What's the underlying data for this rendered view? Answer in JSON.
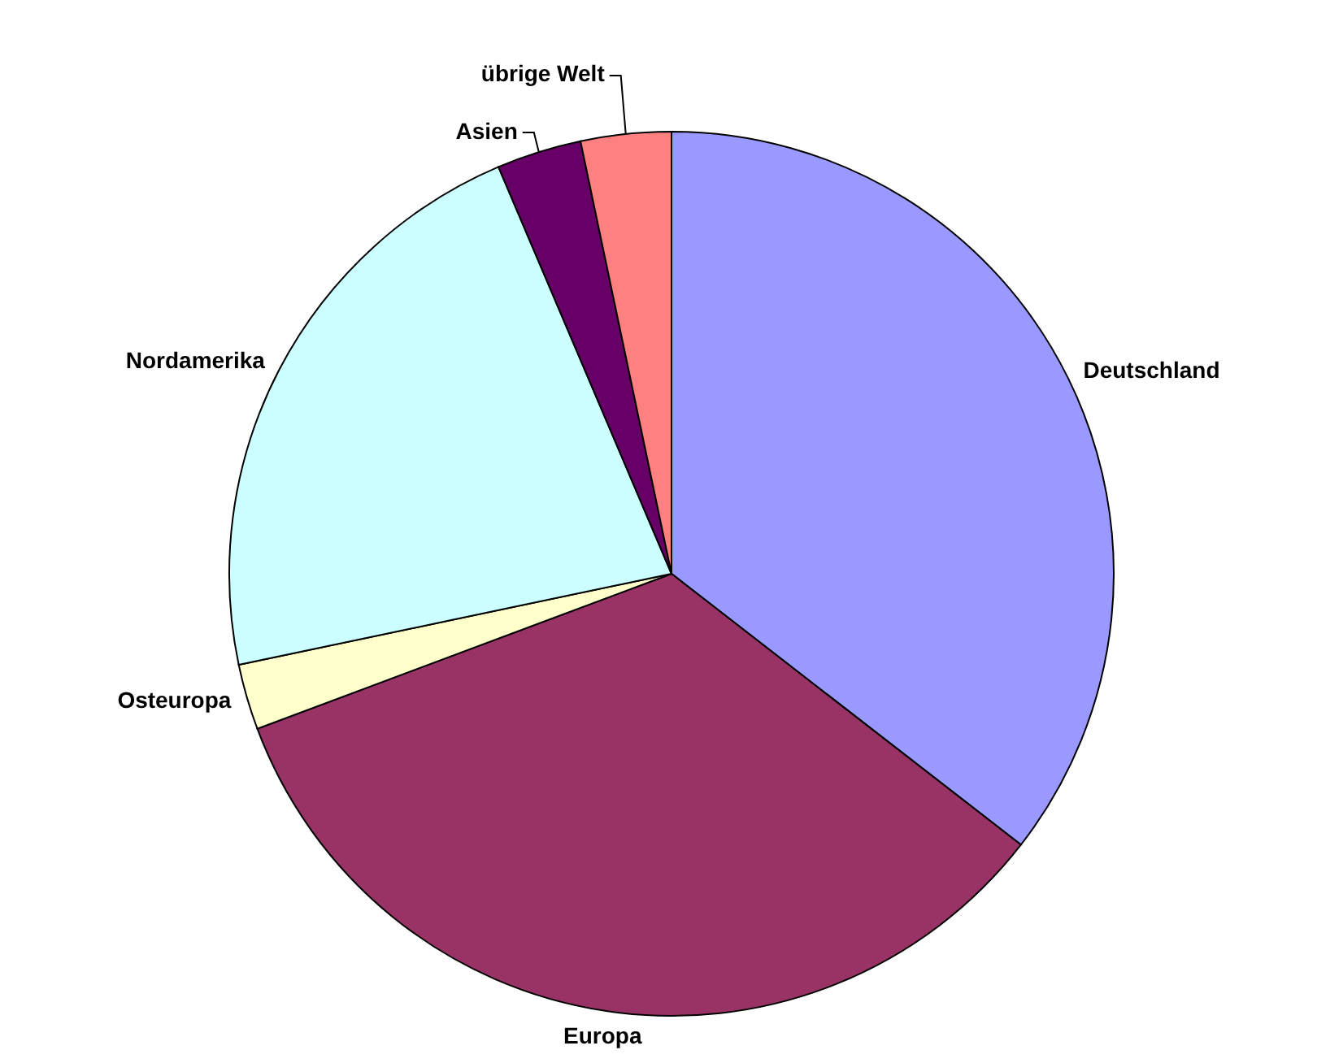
{
  "chart_data": {
    "type": "pie",
    "categories": [
      "Deutschland",
      "Europa",
      "Osteuropa",
      "Nordamerika",
      "Asien",
      "übrige Welt"
    ],
    "values": [
      35.5,
      33.8,
      2.4,
      21.9,
      3.1,
      3.3
    ],
    "colors": [
      "#9999ff",
      "#993366",
      "#ffffcc",
      "#ccffff",
      "#660066",
      "#ff8080"
    ]
  }
}
